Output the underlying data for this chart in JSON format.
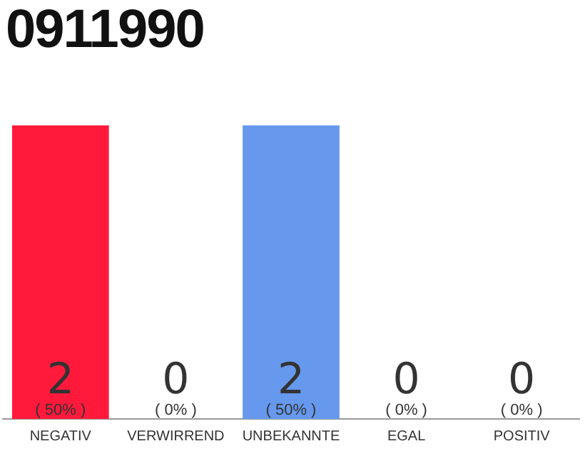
{
  "chart_data": {
    "type": "bar",
    "title": "0911990",
    "categories": [
      "NEGATIV",
      "VERWIRREND",
      "UNBEKANNTE",
      "EGAL",
      "POSITIV"
    ],
    "values": [
      2,
      0,
      2,
      0,
      0
    ],
    "value_labels": [
      "2\n( 50% )",
      "0\n( 0% )",
      "2\n( 50% )",
      "0\n( 0% )",
      "0\n( 0% )"
    ],
    "colors": [
      "#ff1a3c",
      "#eeeeee",
      "#6699ee",
      "#eeeeee",
      "#eeeeee"
    ],
    "ylim": [
      0,
      2
    ],
    "tick_labels": "x",
    "grid": false,
    "legend": false
  }
}
